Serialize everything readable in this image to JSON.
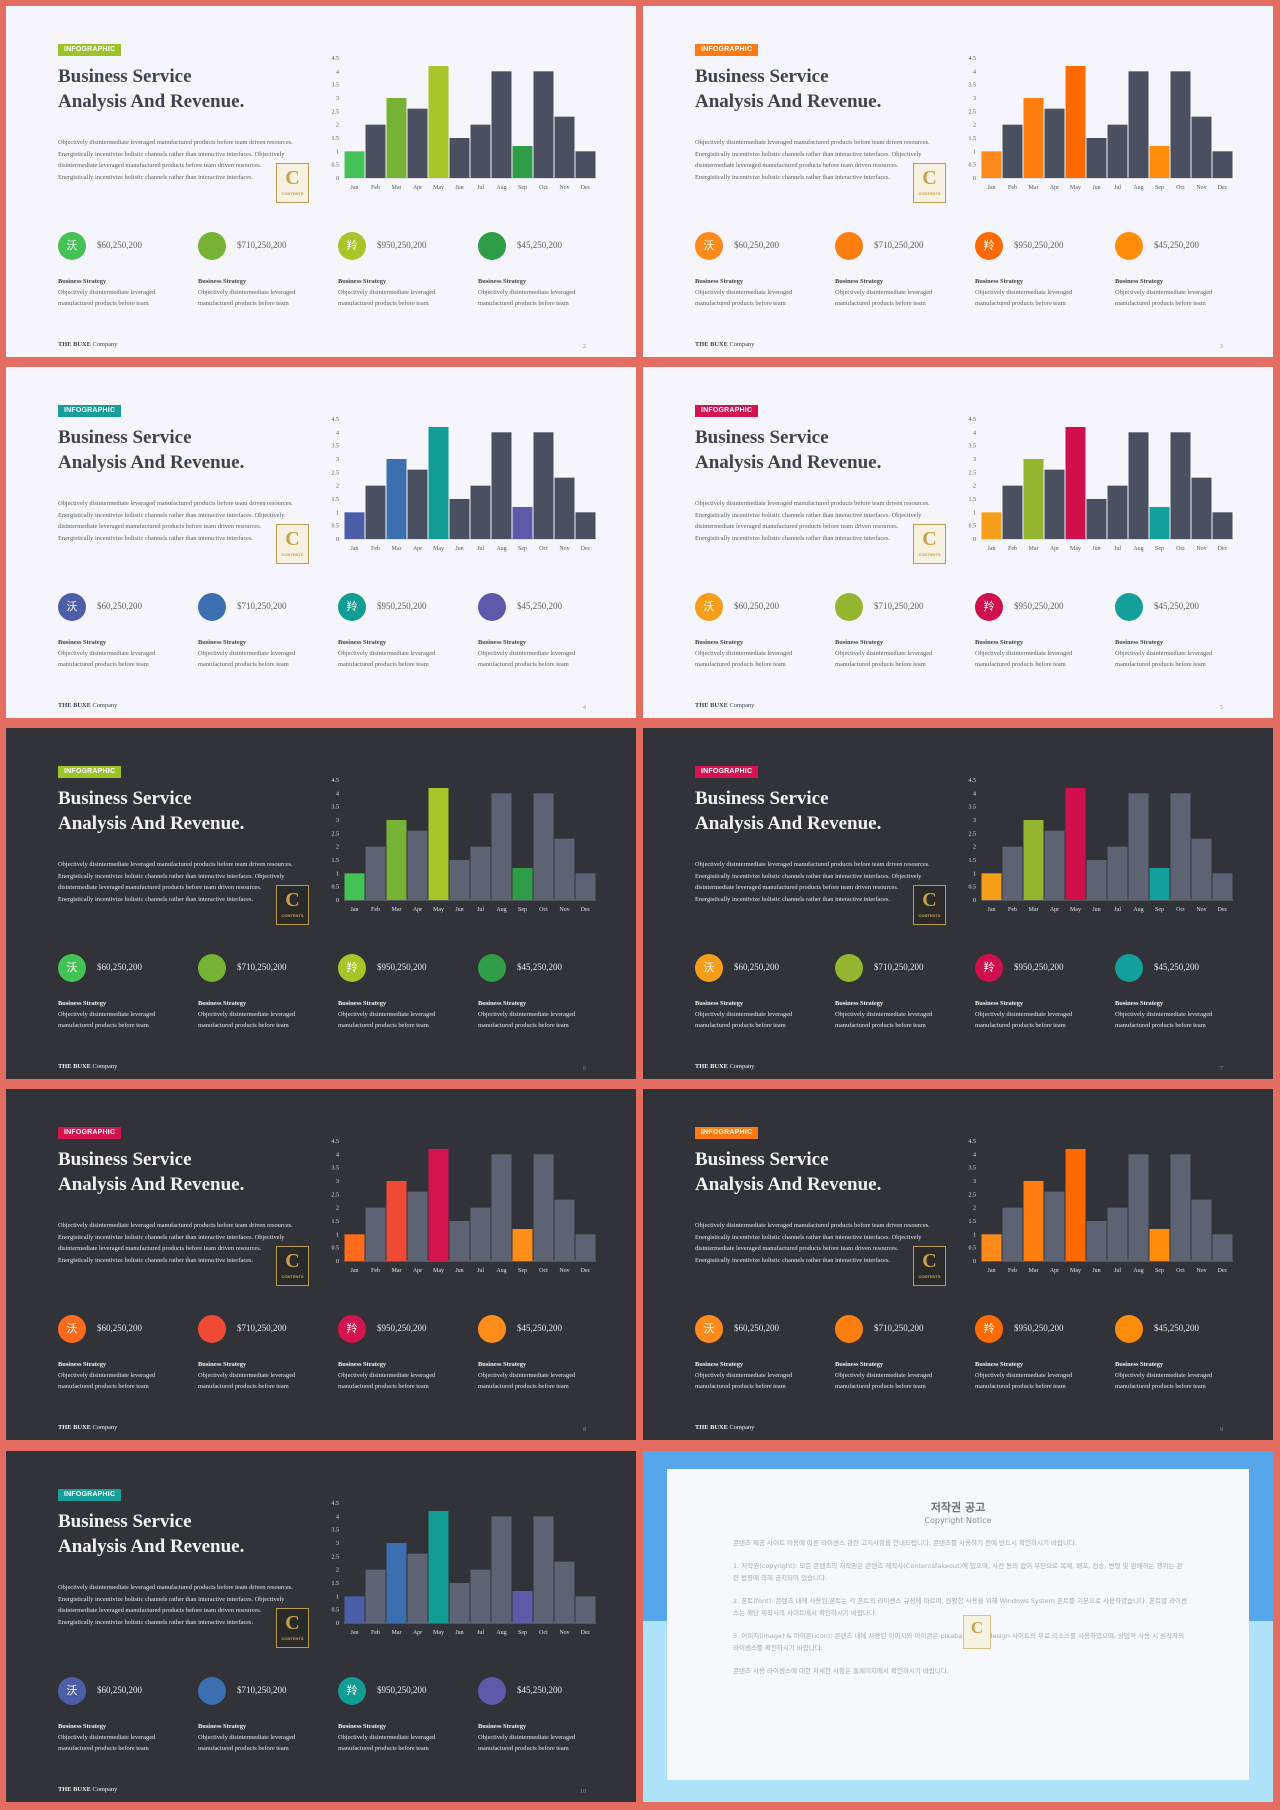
{
  "months": [
    "Jan",
    "Feb",
    "Mar",
    "Apr",
    "May",
    "Jun",
    "Jul",
    "Aug",
    "Sep",
    "Oct",
    "Nov",
    "Dec"
  ],
  "yticks": [
    "0",
    "0.5",
    "1",
    "1.5",
    "2",
    "2.5",
    "3",
    "3.5",
    "4",
    "4.5"
  ],
  "chart_data": {
    "type": "bar",
    "categories": [
      "Jan",
      "Feb",
      "Mar",
      "Apr",
      "May",
      "Jun",
      "Jul",
      "Aug",
      "Sep",
      "Oct",
      "Nov",
      "Dec"
    ],
    "values": [
      1,
      2,
      3,
      2.6,
      4.2,
      1.5,
      2,
      4,
      1.2,
      4,
      2.3,
      1
    ],
    "ylim": [
      0,
      4.5
    ]
  },
  "slides": [
    {
      "theme": "light",
      "page": "2",
      "colors": [
        "#45c255",
        "#76b334",
        "#a8c52a",
        "#2f9c48"
      ],
      "bar_colors": {
        "0": "#45c255",
        "2": "#76b334",
        "4": "#a8c52a",
        "8": "#2f9c48"
      },
      "tag_color": "#9cc42a"
    },
    {
      "theme": "light",
      "page": "3",
      "colors": [
        "#ff8a1c",
        "#ff7e10",
        "#ff6a00",
        "#ff8d0a"
      ],
      "bar_colors": {
        "0": "#ff8a1c",
        "2": "#ff7e10",
        "4": "#ff6a00",
        "8": "#ff8d0a"
      },
      "tag_color": "#ff7a10"
    },
    {
      "theme": "light",
      "page": "4",
      "colors": [
        "#4d5ea8",
        "#3b6fb0",
        "#119c94",
        "#5e59a8"
      ],
      "bar_colors": {
        "0": "#4d5ea8",
        "2": "#3b6fb0",
        "4": "#119c94",
        "8": "#5e59a8"
      },
      "tag_color": "#16a09a"
    },
    {
      "theme": "light",
      "page": "5",
      "colors": [
        "#f59e1a",
        "#93b530",
        "#d0104c",
        "#13a09a"
      ],
      "bar_colors": {
        "0": "#f59e1a",
        "2": "#93b530",
        "4": "#d0104c",
        "8": "#13a09a"
      },
      "tag_color": "#d41450"
    },
    {
      "theme": "dark",
      "page": "6",
      "colors": [
        "#45c255",
        "#76b334",
        "#a8c52a",
        "#2f9c48"
      ],
      "bar_colors": {
        "0": "#45c255",
        "2": "#76b334",
        "4": "#a8c52a",
        "8": "#2f9c48"
      },
      "tag_color": "#9cc42a"
    },
    {
      "theme": "dark",
      "page": "7",
      "colors": [
        "#f59e1a",
        "#93b530",
        "#d0104c",
        "#13a09a"
      ],
      "bar_colors": {
        "0": "#f59e1a",
        "2": "#93b530",
        "4": "#d0104c",
        "8": "#13a09a"
      },
      "tag_color": "#d41450"
    },
    {
      "theme": "dark",
      "page": "8",
      "colors": [
        "#ff6a1c",
        "#f04a36",
        "#d4144e",
        "#ff8d1a"
      ],
      "bar_colors": {
        "0": "#ff6a1c",
        "2": "#f04a36",
        "4": "#d4144e",
        "8": "#ff8d1a"
      },
      "tag_color": "#d4144e"
    },
    {
      "theme": "dark",
      "page": "9",
      "colors": [
        "#ff8a1c",
        "#ff7e10",
        "#ff6a00",
        "#ff8d0a"
      ],
      "bar_colors": {
        "0": "#ff8a1c",
        "2": "#ff7e10",
        "4": "#ff6a00",
        "8": "#ff8d0a"
      },
      "tag_color": "#ff7a10"
    },
    {
      "theme": "dark",
      "page": "10",
      "colors": [
        "#4d5ea8",
        "#3b6fb0",
        "#119c94",
        "#5e59a8"
      ],
      "bar_colors": {
        "0": "#4d5ea8",
        "2": "#3b6fb0",
        "4": "#119c94",
        "8": "#5e59a8"
      },
      "tag_color": "#16a09a"
    }
  ],
  "common": {
    "tag": "INFOGRAPHIC",
    "title_line1": "Business Service",
    "title_line2": "Analysis And Revenue.",
    "desc_1": "Objectively disintermediate leveraged manufactured products before team driven resources.",
    "desc_2": "Energistically incentivize holistic channels rather than interactive interfaces. Objectively",
    "desc_3": "disintermediate leveraged manufactured products before team driven resources.",
    "desc_4": "Energistically incentivize holistic channels rather than interactive interfaces.",
    "logo_letter": "C",
    "logo_text": "CONTENTS",
    "stats": [
      {
        "glyph": "沃",
        "amount": "$60,250,200"
      },
      {
        "glyph": "",
        "amount": "$710,250,200"
      },
      {
        "glyph": "羚",
        "amount": "$950,250,200"
      },
      {
        "glyph": "",
        "amount": "$45,250,200"
      }
    ],
    "strategy_heading": "Business Strategy",
    "strategy_line1": "Objectively disintermediate leveraged",
    "strategy_line2": "manufactured products before team",
    "footer_brand": "THE BUXE",
    "footer_company": "Company"
  },
  "notice": {
    "title": "저작권 공고",
    "subtitle": "Copyright Notice",
    "p1": "콘텐츠 제공 사이트 이용에 따른 라이센스 관련 고지사항을 안내드립니다. 콘텐츠를 사용하기 전에 반드시 확인하시기 바랍니다.",
    "p2": "1. 저작권(copyright): 모든 콘텐츠의 저작권은 콘텐츠 제작사(Contentsfakeout)에 있으며, 사전 동의 없이 무단으로 복제, 배포, 전송, 변형 및 판매하는 행위는 관련 법령에 의해 금지되어 있습니다.",
    "p3": "2. 폰트(font): 콘텐츠 내에 사용된 폰트는 각 폰트의 라이센스 규정에 따르며, 원활한 사용을 위해 Windows System 폰트를 기본으로 사용하였습니다. 폰트별 라이센스는 해당 제작사의 사이트에서 확인하시기 바랍니다.",
    "p4": "3. 이미지(image) & 아이콘(icon): 콘텐츠 내에 사용된 이미지와 아이콘은 pixabay와 Webdesign 사이트의 무료 리소스를 사용하였으며, 상업적 사용 시 원작자의 라이센스를 확인하시기 바랍니다.",
    "p5": "콘텐츠 사용 라이센스에 대한 자세한 사항은 홈페이지에서 확인하시기 바랍니다."
  }
}
